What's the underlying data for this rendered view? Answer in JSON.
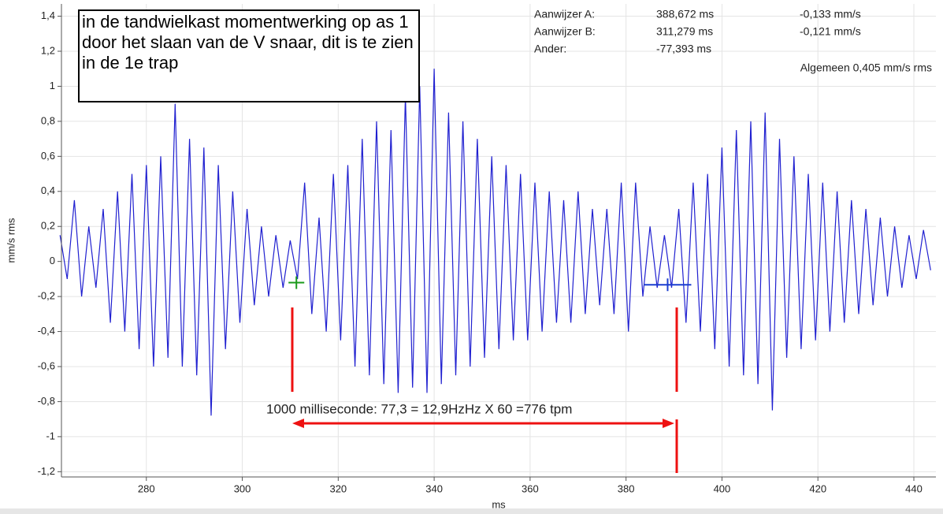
{
  "chart_data": {
    "type": "line",
    "x_label": "ms",
    "y_label": "mm/s rms",
    "xlim": [
      262.3,
      444.6
    ],
    "ylim": [
      -1.23,
      1.47
    ],
    "xticks": [
      280,
      300,
      320,
      340,
      360,
      380,
      400,
      420,
      440
    ],
    "yticks": [
      {
        "value": 1.4,
        "label": "1,4"
      },
      {
        "value": 1.2,
        "label": "1,2"
      },
      1,
      {
        "value": 0.8,
        "label": "0,8"
      },
      {
        "value": 0.6,
        "label": "0,6"
      },
      {
        "value": 0.4,
        "label": "0,4"
      },
      {
        "value": 0.2,
        "label": "0,2"
      },
      0,
      {
        "value": -0.2,
        "label": "-0,2"
      },
      {
        "value": -0.4,
        "label": "-0,4"
      },
      {
        "value": -0.6,
        "label": "-0,6"
      },
      {
        "value": -0.8,
        "label": "-0,8"
      },
      -1,
      {
        "value": -1.2,
        "label": "-1,2"
      }
    ],
    "x": [
      262,
      263.5,
      265,
      266.5,
      268,
      269.5,
      271,
      272.5,
      274,
      275.5,
      277,
      278.5,
      280,
      281.5,
      283,
      284.5,
      286,
      287.5,
      289,
      290.5,
      292,
      293.5,
      295,
      296.5,
      298,
      299.5,
      301,
      302.5,
      304,
      305.5,
      307,
      308.5,
      310,
      311.5,
      313,
      314.5,
      316,
      317.5,
      319,
      320.5,
      322,
      323.5,
      325,
      326.5,
      328,
      329.5,
      331,
      332.5,
      334,
      335.5,
      337,
      338.5,
      340,
      341.5,
      343,
      344.5,
      346,
      347.5,
      349,
      350.5,
      352,
      353.5,
      355,
      356.5,
      358,
      359.5,
      361,
      362.5,
      364,
      365.5,
      367,
      368.5,
      370,
      371.5,
      373,
      374.5,
      376,
      377.5,
      379,
      380.5,
      382,
      383.5,
      385,
      386.5,
      388,
      389.5,
      391,
      392.5,
      394,
      395.5,
      397,
      398.5,
      400,
      401.5,
      403,
      404.5,
      406,
      407.5,
      409,
      410.5,
      412,
      413.5,
      415,
      416.5,
      418,
      419.5,
      421,
      422.5,
      424,
      425.5,
      427,
      428.5,
      430,
      431.5,
      433,
      434.5,
      436,
      437.5,
      439,
      440.5,
      442,
      443.5
    ],
    "series": [
      {
        "color": "#2020d0",
        "values": [
          0.15,
          -0.1,
          0.35,
          -0.2,
          0.2,
          -0.15,
          0.3,
          -0.35,
          0.4,
          -0.4,
          0.5,
          -0.5,
          0.55,
          -0.6,
          0.6,
          -0.55,
          0.9,
          -0.6,
          0.7,
          -0.65,
          0.65,
          -0.88,
          0.55,
          -0.5,
          0.4,
          -0.35,
          0.3,
          -0.25,
          0.2,
          -0.2,
          0.15,
          -0.15,
          0.12,
          -0.1,
          0.45,
          -0.3,
          0.25,
          -0.4,
          0.5,
          -0.45,
          0.55,
          -0.6,
          0.7,
          -0.65,
          0.8,
          -0.7,
          0.75,
          -0.75,
          0.95,
          -0.72,
          1.0,
          -0.75,
          1.1,
          -0.7,
          0.85,
          -0.65,
          0.8,
          -0.6,
          0.7,
          -0.55,
          0.6,
          -0.5,
          0.55,
          -0.45,
          0.5,
          -0.45,
          0.45,
          -0.4,
          0.4,
          -0.35,
          0.35,
          -0.35,
          0.4,
          -0.3,
          0.3,
          -0.25,
          0.3,
          -0.3,
          0.45,
          -0.4,
          0.45,
          -0.2,
          0.2,
          -0.15,
          0.15,
          -0.15,
          0.3,
          -0.35,
          0.45,
          -0.4,
          0.5,
          -0.5,
          0.65,
          -0.6,
          0.75,
          -0.65,
          0.8,
          -0.7,
          0.85,
          -0.85,
          0.7,
          -0.55,
          0.6,
          -0.5,
          0.5,
          -0.45,
          0.45,
          -0.4,
          0.4,
          -0.35,
          0.35,
          -0.3,
          0.3,
          -0.25,
          0.25,
          -0.2,
          0.2,
          -0.15,
          0.15,
          -0.1,
          0.18,
          -0.05
        ]
      }
    ],
    "cursors": [
      {
        "label": "Aanwijzer A:",
        "x": 388.672,
        "y": -0.133,
        "x_text": "388,672 ms",
        "y_text": "-0,133 mm/s",
        "color": "#1c3fd0"
      },
      {
        "label": "Aanwijzer B:",
        "x": 311.279,
        "y": -0.121,
        "x_text": "311,279 ms",
        "y_text": "-0,121 mm/s",
        "color": "#1a9a1a"
      }
    ],
    "difference": {
      "label": "Ander:",
      "text": "-77,393 ms"
    },
    "overall": "Algemeen 0,405 mm/s rms",
    "note": "in de tandwielkast momentwerking op as 1 door het slaan van de V snaar, dit is te zien in de 1e trap",
    "annotation": "1000 milliseconde: 77,3 = 12,9HzHz X 60 =776 tpm"
  }
}
